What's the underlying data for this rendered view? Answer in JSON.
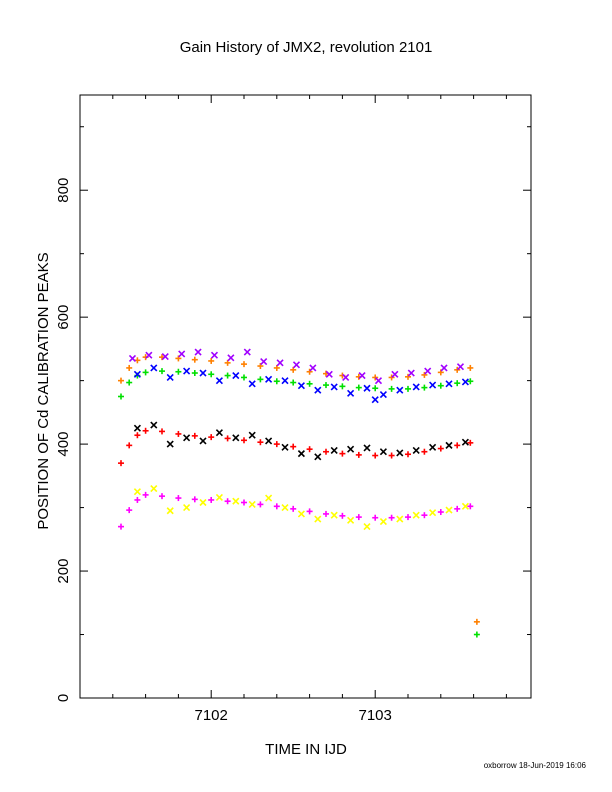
{
  "chart_data": {
    "type": "scatter",
    "title": "Gain History of JMX2, revolution 2101",
    "xlabel": "TIME IN IJD",
    "ylabel": "POSITION OF Cd CALIBRATION PEAKS",
    "footer": "oxborrow 18-Jun-2019 16:06",
    "xlim": [
      7101.2,
      7103.95
    ],
    "ylim": [
      0,
      950
    ],
    "x_ticks": [
      7102,
      7103
    ],
    "y_ticks": [
      0,
      200,
      400,
      600,
      800
    ],
    "x_tick_labels": [
      "7102",
      "7103"
    ],
    "y_tick_labels": [
      "0",
      "200",
      "400",
      "600",
      "800"
    ],
    "grid": false,
    "legend": "none",
    "series": [
      {
        "color": "#ff8000",
        "marker": "+",
        "points": [
          [
            7101.45,
            500
          ],
          [
            7101.5,
            520
          ],
          [
            7101.55,
            532
          ],
          [
            7101.6,
            537
          ],
          [
            7101.7,
            537
          ],
          [
            7101.8,
            535
          ],
          [
            7101.9,
            533
          ],
          [
            7102.0,
            531
          ],
          [
            7102.1,
            528
          ],
          [
            7102.2,
            526
          ],
          [
            7102.3,
            523
          ],
          [
            7102.4,
            520
          ],
          [
            7102.5,
            517
          ],
          [
            7102.6,
            514
          ],
          [
            7102.7,
            511
          ],
          [
            7102.8,
            508
          ],
          [
            7102.9,
            506
          ],
          [
            7103.0,
            505
          ],
          [
            7103.1,
            505
          ],
          [
            7103.2,
            506
          ],
          [
            7103.3,
            509
          ],
          [
            7103.4,
            513
          ],
          [
            7103.5,
            517
          ],
          [
            7103.58,
            520
          ]
        ]
      },
      {
        "color": "#00e000",
        "marker": "+",
        "points": [
          [
            7101.45,
            475
          ],
          [
            7101.5,
            497
          ],
          [
            7101.55,
            508
          ],
          [
            7101.6,
            513
          ],
          [
            7101.7,
            515
          ],
          [
            7101.8,
            514
          ],
          [
            7101.9,
            512
          ],
          [
            7102.0,
            510
          ],
          [
            7102.1,
            508
          ],
          [
            7102.2,
            505
          ],
          [
            7102.3,
            502
          ],
          [
            7102.4,
            499
          ],
          [
            7102.5,
            497
          ],
          [
            7102.6,
            495
          ],
          [
            7102.7,
            493
          ],
          [
            7102.8,
            491
          ],
          [
            7102.9,
            489
          ],
          [
            7103.0,
            488
          ],
          [
            7103.1,
            487
          ],
          [
            7103.2,
            487
          ],
          [
            7103.3,
            489
          ],
          [
            7103.4,
            492
          ],
          [
            7103.5,
            496
          ],
          [
            7103.58,
            499
          ]
        ]
      },
      {
        "color": "#0000ff",
        "marker": "x",
        "points": [
          [
            7101.55,
            510
          ],
          [
            7101.65,
            520
          ],
          [
            7101.75,
            505
          ],
          [
            7101.85,
            515
          ],
          [
            7101.95,
            512
          ],
          [
            7102.05,
            500
          ],
          [
            7102.15,
            508
          ],
          [
            7102.25,
            495
          ],
          [
            7102.35,
            502
          ],
          [
            7102.45,
            500
          ],
          [
            7102.55,
            492
          ],
          [
            7102.65,
            485
          ],
          [
            7102.75,
            490
          ],
          [
            7102.85,
            480
          ],
          [
            7102.95,
            488
          ],
          [
            7103.0,
            470
          ],
          [
            7103.05,
            478
          ],
          [
            7103.15,
            485
          ],
          [
            7103.25,
            490
          ],
          [
            7103.35,
            493
          ],
          [
            7103.45,
            495
          ],
          [
            7103.55,
            498
          ]
        ]
      },
      {
        "color": "#a000ff",
        "marker": "x",
        "points": [
          [
            7101.52,
            535
          ],
          [
            7101.62,
            540
          ],
          [
            7101.72,
            538
          ],
          [
            7101.82,
            542
          ],
          [
            7101.92,
            545
          ],
          [
            7102.02,
            540
          ],
          [
            7102.12,
            536
          ],
          [
            7102.22,
            545
          ],
          [
            7102.32,
            530
          ],
          [
            7102.42,
            528
          ],
          [
            7102.52,
            525
          ],
          [
            7102.62,
            520
          ],
          [
            7102.72,
            510
          ],
          [
            7102.82,
            505
          ],
          [
            7102.92,
            508
          ],
          [
            7103.02,
            500
          ],
          [
            7103.12,
            510
          ],
          [
            7103.22,
            512
          ],
          [
            7103.32,
            515
          ],
          [
            7103.42,
            520
          ],
          [
            7103.52,
            522
          ]
        ]
      },
      {
        "color": "#ff0000",
        "marker": "+",
        "points": [
          [
            7101.45,
            370
          ],
          [
            7101.5,
            398
          ],
          [
            7101.55,
            414
          ],
          [
            7101.6,
            421
          ],
          [
            7101.7,
            420
          ],
          [
            7101.8,
            416
          ],
          [
            7101.9,
            413
          ],
          [
            7102.0,
            411
          ],
          [
            7102.1,
            409
          ],
          [
            7102.2,
            406
          ],
          [
            7102.3,
            403
          ],
          [
            7102.4,
            400
          ],
          [
            7102.5,
            396
          ],
          [
            7102.6,
            392
          ],
          [
            7102.7,
            388
          ],
          [
            7102.8,
            385
          ],
          [
            7102.9,
            383
          ],
          [
            7103.0,
            382
          ],
          [
            7103.1,
            382
          ],
          [
            7103.2,
            384
          ],
          [
            7103.3,
            388
          ],
          [
            7103.4,
            393
          ],
          [
            7103.5,
            398
          ],
          [
            7103.58,
            402
          ]
        ]
      },
      {
        "color": "#000000",
        "marker": "x",
        "points": [
          [
            7101.55,
            425
          ],
          [
            7101.65,
            430
          ],
          [
            7101.75,
            400
          ],
          [
            7101.85,
            410
          ],
          [
            7101.95,
            405
          ],
          [
            7102.05,
            418
          ],
          [
            7102.15,
            410
          ],
          [
            7102.25,
            414
          ],
          [
            7102.35,
            405
          ],
          [
            7102.45,
            395
          ],
          [
            7102.55,
            385
          ],
          [
            7102.65,
            380
          ],
          [
            7102.75,
            390
          ],
          [
            7102.85,
            392
          ],
          [
            7102.95,
            394
          ],
          [
            7103.05,
            388
          ],
          [
            7103.15,
            386
          ],
          [
            7103.25,
            390
          ],
          [
            7103.35,
            395
          ],
          [
            7103.45,
            398
          ],
          [
            7103.55,
            403
          ]
        ]
      },
      {
        "color": "#ff00ff",
        "marker": "+",
        "points": [
          [
            7101.45,
            270
          ],
          [
            7101.5,
            296
          ],
          [
            7101.55,
            312
          ],
          [
            7101.6,
            320
          ],
          [
            7101.7,
            318
          ],
          [
            7101.8,
            315
          ],
          [
            7101.9,
            313
          ],
          [
            7102.0,
            312
          ],
          [
            7102.1,
            310
          ],
          [
            7102.2,
            308
          ],
          [
            7102.3,
            305
          ],
          [
            7102.4,
            302
          ],
          [
            7102.5,
            298
          ],
          [
            7102.6,
            294
          ],
          [
            7102.7,
            290
          ],
          [
            7102.8,
            287
          ],
          [
            7102.9,
            285
          ],
          [
            7103.0,
            284
          ],
          [
            7103.1,
            284
          ],
          [
            7103.2,
            285
          ],
          [
            7103.3,
            288
          ],
          [
            7103.4,
            293
          ],
          [
            7103.5,
            298
          ],
          [
            7103.58,
            302
          ]
        ]
      },
      {
        "color": "#ffff00",
        "marker": "x",
        "points": [
          [
            7101.55,
            325
          ],
          [
            7101.65,
            330
          ],
          [
            7101.75,
            295
          ],
          [
            7101.85,
            300
          ],
          [
            7101.95,
            308
          ],
          [
            7102.05,
            316
          ],
          [
            7102.15,
            310
          ],
          [
            7102.25,
            305
          ],
          [
            7102.35,
            315
          ],
          [
            7102.45,
            300
          ],
          [
            7102.55,
            290
          ],
          [
            7102.65,
            282
          ],
          [
            7102.75,
            288
          ],
          [
            7102.85,
            280
          ],
          [
            7102.95,
            270
          ],
          [
            7103.05,
            278
          ],
          [
            7103.15,
            282
          ],
          [
            7103.25,
            288
          ],
          [
            7103.35,
            292
          ],
          [
            7103.45,
            296
          ],
          [
            7103.55,
            302
          ]
        ]
      },
      {
        "color": "#ff8000",
        "marker": "+",
        "points": [
          [
            7103.62,
            120
          ]
        ]
      },
      {
        "color": "#00e000",
        "marker": "+",
        "points": [
          [
            7103.62,
            100
          ]
        ]
      }
    ]
  }
}
